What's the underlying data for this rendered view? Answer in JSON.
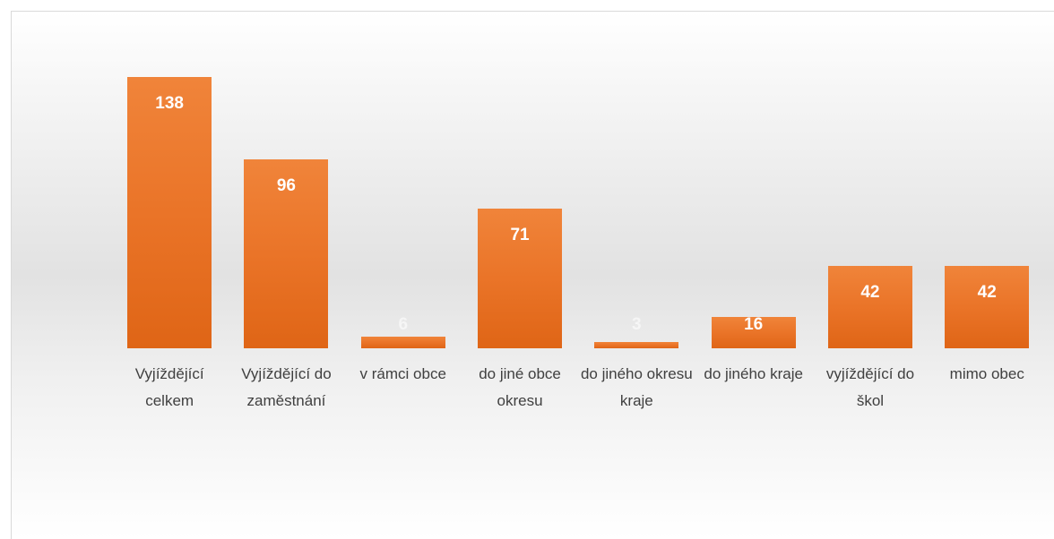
{
  "chart_data": {
    "type": "bar",
    "categories": [
      "Vyjíždějící celkem",
      "Vyjíždějící do zaměstnání",
      "v rámci obce",
      "do jiné obce okresu",
      "do jiného okresu kraje",
      "do jiného kraje",
      "vyjíždějící do škol",
      "mimo obec"
    ],
    "values": [
      138,
      96,
      6,
      71,
      3,
      16,
      42,
      42
    ],
    "color": "#ea7428"
  }
}
